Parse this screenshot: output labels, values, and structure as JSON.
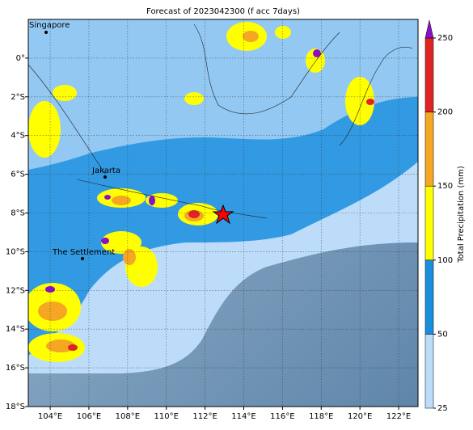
{
  "title": "Forecast of 2023042300 (f acc 7days)",
  "map": {
    "lon_range": [
      102.87,
      123
    ],
    "lat_range": [
      -18,
      2
    ],
    "lon_ticks": [
      {
        "value": 104,
        "label": "104°E"
      },
      {
        "value": 106,
        "label": "106°E"
      },
      {
        "value": 108,
        "label": "108°E"
      },
      {
        "value": 110,
        "label": "110°E"
      },
      {
        "value": 112,
        "label": "112°E"
      },
      {
        "value": 114,
        "label": "114°E"
      },
      {
        "value": 116,
        "label": "116°E"
      },
      {
        "value": 118,
        "label": "118°E"
      },
      {
        "value": 120,
        "label": "120°E"
      },
      {
        "value": 122,
        "label": "122°E"
      }
    ],
    "lat_ticks": [
      {
        "value": 0,
        "label": "0°"
      },
      {
        "value": -2,
        "label": "2°S"
      },
      {
        "value": -4,
        "label": "4°S"
      },
      {
        "value": -6,
        "label": "6°S"
      },
      {
        "value": -8,
        "label": "8°S"
      },
      {
        "value": -10,
        "label": "10°S"
      },
      {
        "value": -12,
        "label": "12°S"
      },
      {
        "value": -14,
        "label": "14°S"
      },
      {
        "value": -16,
        "label": "16°S"
      },
      {
        "value": -18,
        "label": "18°S"
      }
    ],
    "places": [
      "Singapore",
      "Jakarta",
      "The Settlement"
    ]
  },
  "colorbar": {
    "label": "Total Precipitation (mm)",
    "ticks": [
      25,
      50,
      100,
      150,
      200,
      250
    ],
    "colors": [
      "#bcdcfa",
      "#1a8ede",
      "#ffff00",
      "#f5a623",
      "#e02424"
    ],
    "extend_color": "#8a10c8"
  }
}
